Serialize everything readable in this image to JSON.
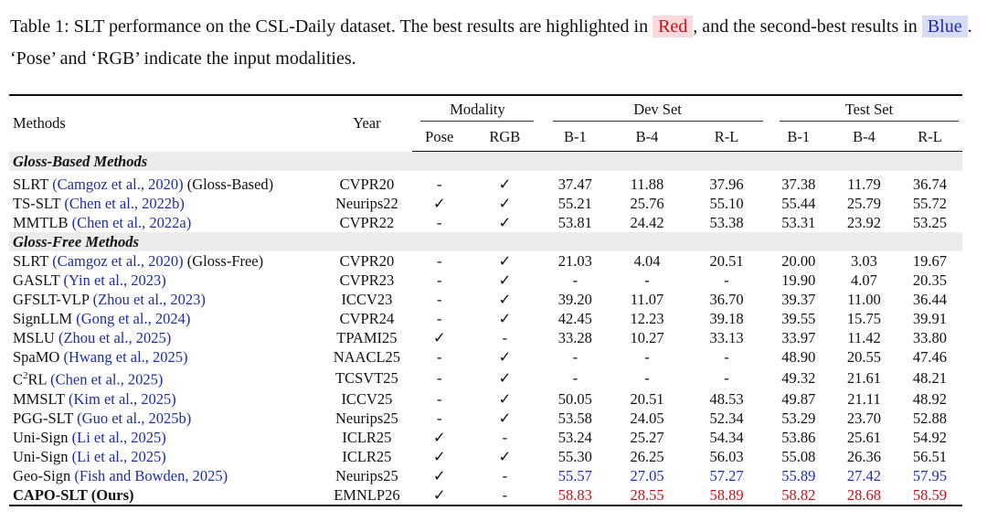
{
  "caption": {
    "part1": "Table 1: SLT performance on the CSL-Daily dataset. The best results are highlighted in ",
    "red_word": "Red",
    "part2": ", and the second-best results in ",
    "blue_word": "Blue",
    "part3": ". ‘Pose’ and ‘RGB’ indicate the input modalities."
  },
  "header": {
    "methods": "Methods",
    "year": "Year",
    "modality": "Modality",
    "dev_set": "Dev Set",
    "test_set": "Test Set",
    "sub": [
      "Pose",
      "RGB",
      "B-1",
      "B-4",
      "R-L",
      "B-1",
      "B-4",
      "R-L"
    ]
  },
  "sections": [
    {
      "title": "Gloss-Based Methods",
      "rows": [
        {
          "name": "SLRT",
          "cite": "(Camgoz et al., 2020)",
          "suffix": "(Gloss-Based)",
          "year": "CVPR20",
          "pose": "-",
          "rgb": "✓",
          "dev": [
            "37.47",
            "11.88",
            "37.96"
          ],
          "test": [
            "37.38",
            "11.79",
            "36.74"
          ]
        },
        {
          "name": "TS-SLT",
          "cite": "(Chen et al., 2022b)",
          "suffix": "",
          "year": "Neurips22",
          "pose": "✓",
          "rgb": "✓",
          "dev": [
            "55.21",
            "25.76",
            "55.10"
          ],
          "test": [
            "55.44",
            "25.79",
            "55.72"
          ]
        },
        {
          "name": "MMTLB",
          "cite": "(Chen et al., 2022a)",
          "suffix": "",
          "year": "CVPR22",
          "pose": "-",
          "rgb": "✓",
          "dev": [
            "53.81",
            "24.42",
            "53.38"
          ],
          "test": [
            "53.31",
            "23.92",
            "53.25"
          ]
        }
      ]
    },
    {
      "title": "Gloss-Free Methods",
      "rows": [
        {
          "name": "SLRT",
          "cite": "(Camgoz et al., 2020)",
          "suffix": "(Gloss-Free)",
          "year": "CVPR20",
          "pose": "-",
          "rgb": "✓",
          "dev": [
            "21.03",
            "4.04",
            "20.51"
          ],
          "test": [
            "20.00",
            "3.03",
            "19.67"
          ]
        },
        {
          "name": "GASLT",
          "cite": "(Yin et al., 2023)",
          "suffix": "",
          "year": "CVPR23",
          "pose": "-",
          "rgb": "✓",
          "dev": [
            "-",
            "-",
            "-"
          ],
          "test": [
            "19.90",
            "4.07",
            "20.35"
          ]
        },
        {
          "name": "GFSLT-VLP",
          "cite": "(Zhou et al., 2023)",
          "suffix": "",
          "year": "ICCV23",
          "pose": "-",
          "rgb": "✓",
          "dev": [
            "39.20",
            "11.07",
            "36.70"
          ],
          "test": [
            "39.37",
            "11.00",
            "36.44"
          ]
        },
        {
          "name": "SignLLM",
          "cite": "(Gong et al., 2024)",
          "suffix": "",
          "year": "CVPR24",
          "pose": "-",
          "rgb": "✓",
          "dev": [
            "42.45",
            "12.23",
            "39.18"
          ],
          "test": [
            "39.55",
            "15.75",
            "39.91"
          ]
        },
        {
          "name": "MSLU",
          "cite": "(Zhou et al., 2025)",
          "suffix": "",
          "year": "TPAMI25",
          "pose": "✓",
          "rgb": "-",
          "dev": [
            "33.28",
            "10.27",
            "33.13"
          ],
          "test": [
            "33.97",
            "11.42",
            "33.80"
          ]
        },
        {
          "name": "SpaMO",
          "cite": "(Hwang et al., 2025)",
          "suffix": "",
          "year": "NAACL25",
          "pose": "-",
          "rgb": "✓",
          "dev": [
            "-",
            "-",
            "-"
          ],
          "test": [
            "48.90",
            "20.55",
            "47.46"
          ]
        },
        {
          "name": "C",
          "sup": "2",
          "name_tail": "RL",
          "cite": "(Chen et al., 2025)",
          "suffix": "",
          "year": "TCSVT25",
          "pose": "-",
          "rgb": "✓",
          "dev": [
            "-",
            "-",
            "-"
          ],
          "test": [
            "49.32",
            "21.61",
            "48.21"
          ]
        },
        {
          "name": "MMSLT",
          "cite": "(Kim et al., 2025)",
          "suffix": "",
          "year": "ICCV25",
          "pose": "-",
          "rgb": "✓",
          "dev": [
            "50.05",
            "20.51",
            "48.53"
          ],
          "test": [
            "49.87",
            "21.11",
            "48.92"
          ]
        },
        {
          "name": "PGG-SLT",
          "cite": "(Guo et al., 2025b)",
          "suffix": "",
          "year": "Neurips25",
          "pose": "-",
          "rgb": "✓",
          "dev": [
            "53.58",
            "24.05",
            "52.34"
          ],
          "test": [
            "53.29",
            "23.70",
            "52.88"
          ]
        },
        {
          "name": "Uni-Sign",
          "cite": "(Li et al., 2025)",
          "suffix": "",
          "year": "ICLR25",
          "pose": "✓",
          "rgb": "-",
          "dev": [
            "53.24",
            "25.27",
            "54.34"
          ],
          "test": [
            "53.86",
            "25.61",
            "54.92"
          ]
        },
        {
          "name": "Uni-Sign",
          "cite": "(Li et al., 2025)",
          "suffix": "",
          "year": "ICLR25",
          "pose": "✓",
          "rgb": "✓",
          "dev": [
            "55.30",
            "26.25",
            "56.03"
          ],
          "test": [
            "55.08",
            "26.36",
            "56.51"
          ]
        },
        {
          "name": "Geo-Sign",
          "cite": "(Fish and Bowden, 2025)",
          "suffix": "",
          "year": "Neurips25",
          "pose": "✓",
          "rgb": "-",
          "dev": [
            "55.57",
            "27.05",
            "57.27"
          ],
          "test": [
            "55.89",
            "27.42",
            "57.95"
          ],
          "highlight": "blue"
        },
        {
          "name": "CAPO-SLT (Ours)",
          "cite": "",
          "suffix": "",
          "year": "EMNLP26",
          "pose": "✓",
          "rgb": "-",
          "dev": [
            "58.83",
            "28.55",
            "58.89"
          ],
          "test": [
            "58.82",
            "28.68",
            "58.59"
          ],
          "highlight": "red",
          "bold": true
        }
      ]
    }
  ],
  "colors": {
    "best": "#c0141c",
    "second": "#1d2bb3",
    "citation": "#1f2d9e",
    "section_bg": "#ececec"
  }
}
